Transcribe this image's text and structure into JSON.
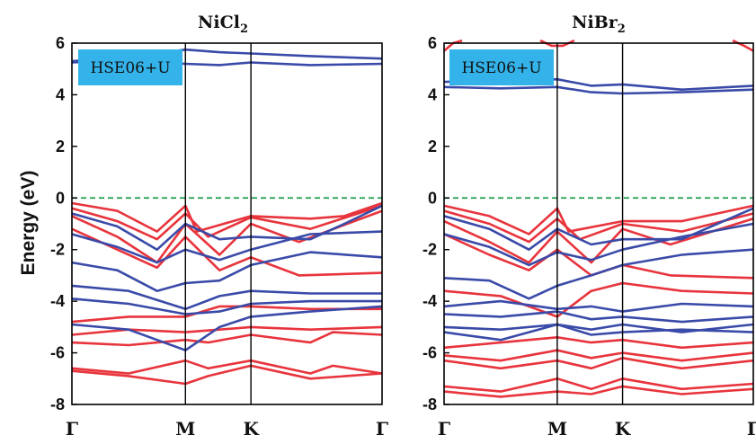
{
  "chart_data": [
    {
      "type": "line",
      "title": "NiCl₂",
      "title_base": "NiCl",
      "title_sub": "2",
      "ylabel": "Energy (eV)",
      "ylim": [
        -8,
        6
      ],
      "yticks": [
        "6",
        "4",
        "2",
        "0",
        "-2",
        "-4",
        "-6",
        "-8"
      ],
      "ytick_values": [
        6,
        4,
        2,
        0,
        -2,
        -4,
        -6,
        -8
      ],
      "kpoints": [
        {
          "label": "Γ",
          "x": 0
        },
        {
          "label": "M",
          "x": 1
        },
        {
          "label": "K",
          "x": 1.577
        },
        {
          "label": "Γ",
          "x": 2.732
        }
      ],
      "xlim": [
        0,
        2.732
      ],
      "fermi_level": 0,
      "annotation": "HSE06+U",
      "series": [
        {
          "spin": "down",
          "color": "#3a4aa8",
          "x": [
            0,
            0.5,
            1,
            1.3,
            1.577,
            2.1,
            2.732
          ],
          "y": [
            5.3,
            5.45,
            5.75,
            5.65,
            5.6,
            5.5,
            5.4
          ]
        },
        {
          "spin": "down",
          "color": "#3a4aa8",
          "x": [
            0,
            0.5,
            1,
            1.3,
            1.577,
            2.1,
            2.732
          ],
          "y": [
            5.25,
            5.35,
            5.2,
            5.15,
            5.25,
            5.15,
            5.2
          ]
        },
        {
          "spin": "up",
          "color": "#e8343c",
          "x": [
            0,
            0.4,
            0.75,
            1,
            1.1,
            1.577,
            2.1,
            2.4,
            2.732
          ],
          "y": [
            -0.2,
            -0.5,
            -1.3,
            -0.3,
            -1.3,
            -0.7,
            -0.8,
            -0.7,
            -0.2
          ]
        },
        {
          "spin": "up",
          "color": "#e8343c",
          "x": [
            0,
            0.4,
            0.75,
            1,
            1.2,
            1.577,
            2.1,
            2.732
          ],
          "y": [
            -0.4,
            -0.9,
            -1.6,
            -0.6,
            -1.5,
            -0.75,
            -1.2,
            -0.3
          ]
        },
        {
          "spin": "up",
          "color": "#e8343c",
          "x": [
            0,
            0.4,
            0.75,
            1,
            1.3,
            1.577,
            2.0,
            2.732
          ],
          "y": [
            -0.7,
            -1.5,
            -2.5,
            -1.0,
            -2.2,
            -1.0,
            -1.7,
            -0.5
          ]
        },
        {
          "spin": "up",
          "color": "#e8343c",
          "x": [
            0,
            0.4,
            0.75,
            1,
            1.3,
            1.577,
            2.0,
            2.732
          ],
          "y": [
            -1.2,
            -2.0,
            -2.7,
            -1.5,
            -2.8,
            -2.3,
            -3.0,
            -2.9
          ]
        },
        {
          "spin": "up",
          "color": "#e8343c",
          "x": [
            0,
            0.5,
            1,
            1.3,
            1.577,
            2.1,
            2.732
          ],
          "y": [
            -4.8,
            -4.6,
            -4.6,
            -4.2,
            -4.2,
            -4.3,
            -4.3
          ]
        },
        {
          "spin": "up",
          "color": "#e8343c",
          "x": [
            0,
            0.5,
            1,
            1.3,
            1.577,
            2.1,
            2.732
          ],
          "y": [
            -5.3,
            -5.1,
            -5.2,
            -5.1,
            -5.0,
            -5.1,
            -5.0
          ]
        },
        {
          "spin": "up",
          "color": "#e8343c",
          "x": [
            0,
            0.5,
            1,
            1.2,
            1.577,
            2.1,
            2.3,
            2.732
          ],
          "y": [
            -5.6,
            -5.7,
            -5.5,
            -5.6,
            -5.3,
            -5.6,
            -5.2,
            -5.3
          ]
        },
        {
          "spin": "up",
          "color": "#e8343c",
          "x": [
            0,
            0.5,
            1,
            1.2,
            1.577,
            2.1,
            2.3,
            2.732
          ],
          "y": [
            -6.6,
            -6.8,
            -6.3,
            -6.6,
            -6.3,
            -6.8,
            -6.5,
            -6.8
          ]
        },
        {
          "spin": "up",
          "color": "#e8343c",
          "x": [
            0,
            0.5,
            1,
            1.2,
            1.577,
            2.1,
            2.732
          ],
          "y": [
            -6.7,
            -6.9,
            -7.2,
            -6.9,
            -6.5,
            -7.0,
            -6.8
          ]
        },
        {
          "spin": "down",
          "color": "#3a4aa8",
          "x": [
            0,
            0.4,
            0.75,
            1,
            1.3,
            1.577,
            2.1,
            2.4,
            2.732
          ],
          "y": [
            -0.6,
            -1.1,
            -2.0,
            -1.0,
            -1.6,
            -1.5,
            -1.6,
            -1.0,
            -0.3
          ]
        },
        {
          "spin": "down",
          "color": "#3a4aa8",
          "x": [
            0,
            0.4,
            0.75,
            1,
            1.3,
            1.577,
            2.1,
            2.732
          ],
          "y": [
            -1.4,
            -1.9,
            -2.5,
            -2.0,
            -2.4,
            -2.0,
            -1.4,
            -1.3
          ]
        },
        {
          "spin": "down",
          "color": "#3a4aa8",
          "x": [
            0,
            0.4,
            0.75,
            1,
            1.3,
            1.577,
            2.1,
            2.732
          ],
          "y": [
            -2.5,
            -2.8,
            -3.6,
            -3.3,
            -3.2,
            -2.6,
            -2.1,
            -2.3
          ]
        },
        {
          "spin": "down",
          "color": "#3a4aa8",
          "x": [
            0,
            0.5,
            1,
            1.3,
            1.577,
            2.1,
            2.732
          ],
          "y": [
            -3.4,
            -3.6,
            -4.3,
            -3.8,
            -3.6,
            -3.7,
            -3.7
          ]
        },
        {
          "spin": "down",
          "color": "#3a4aa8",
          "x": [
            0,
            0.5,
            1,
            1.3,
            1.577,
            2.1,
            2.732
          ],
          "y": [
            -3.9,
            -4.1,
            -4.5,
            -4.4,
            -4.1,
            -4.0,
            -4.0
          ]
        },
        {
          "spin": "down",
          "color": "#3a4aa8",
          "x": [
            0,
            0.5,
            1,
            1.3,
            1.577,
            2.1,
            2.732
          ],
          "y": [
            -4.9,
            -5.1,
            -5.9,
            -5.0,
            -4.6,
            -4.4,
            -4.2
          ]
        }
      ]
    },
    {
      "type": "line",
      "title": "NiBr₂",
      "title_base": "NiBr",
      "title_sub": "2",
      "ylabel": "",
      "ylim": [
        -8,
        6
      ],
      "yticks": [
        "6",
        "4",
        "2",
        "0",
        "-2",
        "-4",
        "-6",
        "-8"
      ],
      "ytick_values": [
        6,
        4,
        2,
        0,
        -2,
        -4,
        -6,
        -8
      ],
      "kpoints": [
        {
          "label": "Γ",
          "x": 0
        },
        {
          "label": "M",
          "x": 1
        },
        {
          "label": "K",
          "x": 1.577
        },
        {
          "label": "Γ",
          "x": 2.732
        }
      ],
      "xlim": [
        0,
        2.732
      ],
      "fermi_level": 0,
      "annotation": "HSE06+U",
      "series": [
        {
          "spin": "down",
          "color": "#3a4aa8",
          "x": [
            0,
            0.5,
            1,
            1.3,
            1.577,
            2.1,
            2.732
          ],
          "y": [
            4.5,
            4.55,
            4.6,
            4.35,
            4.4,
            4.2,
            4.35
          ]
        },
        {
          "spin": "down",
          "color": "#3a4aa8",
          "x": [
            0,
            0.5,
            1,
            1.3,
            1.577,
            2.1,
            2.732
          ],
          "y": [
            4.3,
            4.25,
            4.3,
            4.1,
            4.05,
            4.1,
            4.2
          ]
        },
        {
          "spin": "up",
          "color": "#e8343c",
          "x": [
            0,
            0.08,
            0.16
          ],
          "y": [
            5.7,
            6.0,
            6.1
          ]
        },
        {
          "spin": "up",
          "color": "#e8343c",
          "x": [
            0.85,
            0.95,
            1.05,
            1.15
          ],
          "y": [
            6.1,
            5.9,
            5.9,
            6.1
          ]
        },
        {
          "spin": "up",
          "color": "#e8343c",
          "x": [
            2.55,
            2.65,
            2.732
          ],
          "y": [
            6.1,
            5.9,
            5.7
          ]
        },
        {
          "spin": "up",
          "color": "#e8343c",
          "x": [
            0,
            0.4,
            0.75,
            1,
            1.1,
            1.577,
            2.1,
            2.732
          ],
          "y": [
            -0.3,
            -0.7,
            -1.4,
            -0.4,
            -1.3,
            -0.9,
            -0.9,
            -0.3
          ]
        },
        {
          "spin": "up",
          "color": "#e8343c",
          "x": [
            0,
            0.4,
            0.75,
            1,
            1.2,
            1.577,
            2.1,
            2.732
          ],
          "y": [
            -0.5,
            -1.0,
            -1.7,
            -0.8,
            -1.6,
            -1.0,
            -1.3,
            -0.6
          ]
        },
        {
          "spin": "up",
          "color": "#e8343c",
          "x": [
            0,
            0.4,
            0.75,
            1,
            1.3,
            1.577,
            2.0,
            2.732
          ],
          "y": [
            -0.9,
            -1.7,
            -2.5,
            -1.3,
            -2.5,
            -1.2,
            -1.8,
            -0.8
          ]
        },
        {
          "spin": "up",
          "color": "#e8343c",
          "x": [
            0,
            0.4,
            0.75,
            1,
            1.3,
            1.577,
            2.0,
            2.732
          ],
          "y": [
            -1.4,
            -2.2,
            -2.8,
            -2.0,
            -3.0,
            -2.6,
            -3.0,
            -3.1
          ]
        },
        {
          "spin": "up",
          "color": "#e8343c",
          "x": [
            0,
            0.5,
            1,
            1.3,
            1.577,
            2.1,
            2.732
          ],
          "y": [
            -3.6,
            -3.8,
            -4.6,
            -3.6,
            -3.3,
            -3.6,
            -3.7
          ]
        },
        {
          "spin": "up",
          "color": "#e8343c",
          "x": [
            0,
            0.5,
            1,
            1.3,
            1.577,
            2.1,
            2.732
          ],
          "y": [
            -5.8,
            -5.6,
            -5.4,
            -5.6,
            -5.5,
            -5.8,
            -5.6
          ]
        },
        {
          "spin": "up",
          "color": "#e8343c",
          "x": [
            0,
            0.5,
            1,
            1.3,
            1.577,
            2.1,
            2.732
          ],
          "y": [
            -6.1,
            -6.3,
            -5.9,
            -6.2,
            -6.0,
            -6.3,
            -6.0
          ]
        },
        {
          "spin": "up",
          "color": "#e8343c",
          "x": [
            0,
            0.5,
            1,
            1.3,
            1.577,
            2.1,
            2.732
          ],
          "y": [
            -6.3,
            -6.6,
            -6.3,
            -6.6,
            -6.2,
            -6.6,
            -6.3
          ]
        },
        {
          "spin": "up",
          "color": "#e8343c",
          "x": [
            0,
            0.5,
            1,
            1.3,
            1.577,
            2.1,
            2.732
          ],
          "y": [
            -7.3,
            -7.5,
            -7.0,
            -7.4,
            -7.0,
            -7.4,
            -7.2
          ]
        },
        {
          "spin": "up",
          "color": "#e8343c",
          "x": [
            0,
            0.5,
            1,
            1.3,
            1.577,
            2.1,
            2.732
          ],
          "y": [
            -7.5,
            -7.7,
            -7.5,
            -7.6,
            -7.3,
            -7.6,
            -7.4
          ]
        },
        {
          "spin": "down",
          "color": "#3a4aa8",
          "x": [
            0,
            0.4,
            0.75,
            1,
            1.3,
            1.577,
            2.1,
            2.732
          ],
          "y": [
            -0.7,
            -1.2,
            -2.0,
            -1.2,
            -1.8,
            -1.6,
            -1.6,
            -0.4
          ]
        },
        {
          "spin": "down",
          "color": "#3a4aa8",
          "x": [
            0,
            0.4,
            0.75,
            1,
            1.3,
            1.577,
            2.1,
            2.732
          ],
          "y": [
            -1.4,
            -1.9,
            -2.6,
            -2.1,
            -2.4,
            -2.0,
            -1.5,
            -1.0
          ]
        },
        {
          "spin": "down",
          "color": "#3a4aa8",
          "x": [
            0,
            0.4,
            0.75,
            1,
            1.3,
            1.577,
            2.1,
            2.732
          ],
          "y": [
            -3.1,
            -3.2,
            -3.9,
            -3.4,
            -3.0,
            -2.6,
            -2.2,
            -2.0
          ]
        },
        {
          "spin": "down",
          "color": "#3a4aa8",
          "x": [
            0,
            0.5,
            1,
            1.3,
            1.577,
            2.1,
            2.732
          ],
          "y": [
            -4.2,
            -4.0,
            -4.3,
            -4.2,
            -4.4,
            -4.1,
            -4.2
          ]
        },
        {
          "spin": "down",
          "color": "#3a4aa8",
          "x": [
            0,
            0.5,
            1,
            1.3,
            1.577,
            2.1,
            2.732
          ],
          "y": [
            -4.5,
            -4.6,
            -4.4,
            -4.7,
            -4.6,
            -4.8,
            -4.6
          ]
        },
        {
          "spin": "down",
          "color": "#3a4aa8",
          "x": [
            0,
            0.5,
            1,
            1.3,
            1.577,
            2.1,
            2.732
          ],
          "y": [
            -5.0,
            -5.1,
            -4.9,
            -5.1,
            -4.9,
            -5.2,
            -4.9
          ]
        },
        {
          "spin": "down",
          "color": "#3a4aa8",
          "x": [
            0,
            0.5,
            1,
            1.3,
            1.577,
            2.1,
            2.732
          ],
          "y": [
            -5.2,
            -5.5,
            -4.9,
            -5.3,
            -5.2,
            -5.1,
            -5.2
          ]
        }
      ]
    }
  ]
}
